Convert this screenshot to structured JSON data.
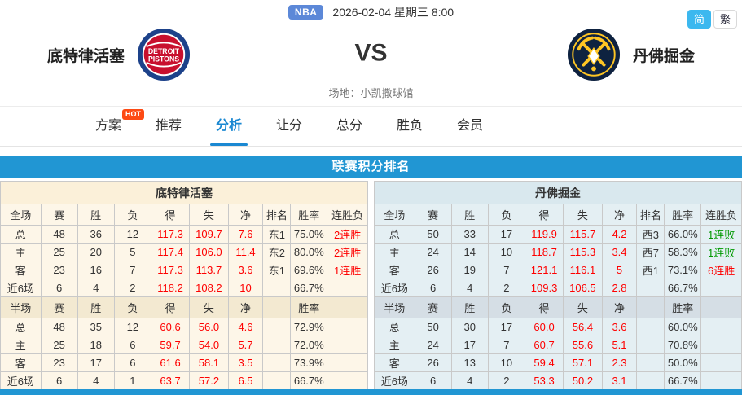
{
  "topbar": {
    "league_badge": "NBA",
    "datetime": "2026-02-04 星期三 8:00",
    "lang_simplified": "简",
    "lang_traditional": "繁"
  },
  "match": {
    "home_name": "底特律活塞",
    "away_name": "丹佛掘金",
    "vs": "VS",
    "venue": "场地：小凯撒球馆",
    "home_logo_line1": "DETROIT",
    "home_logo_line2": "PISTONS"
  },
  "nav": {
    "tabs": [
      {
        "label": "方案",
        "badge": "HOT"
      },
      {
        "label": "推荐"
      },
      {
        "label": "分析",
        "active": true
      },
      {
        "label": "让分"
      },
      {
        "label": "总分"
      },
      {
        "label": "胜负"
      },
      {
        "label": "会员"
      }
    ]
  },
  "section": {
    "title": "联赛积分排名"
  },
  "colors": {
    "accent_blue": "#2196d3",
    "active_tab": "#1a88d2",
    "nba_badge": "#5c88d8",
    "lang_active": "#3cb8ef",
    "hot_badge": "#fd4a14",
    "positive_red": "#fe0000",
    "negative_green": "#009900",
    "home_bg": "#fdf6e8",
    "home_header_bg": "#fbf0d9",
    "home_subheader_bg": "#f3e9d1",
    "away_bg": "#e4eff3",
    "away_header_bg": "#d9e8ee",
    "away_subheader_bg": "#d5dee5",
    "pistons_blue": "#1d428a",
    "pistons_red": "#c8102e",
    "nuggets_navy": "#0e2240",
    "nuggets_gold": "#fec524"
  },
  "tables": {
    "home": {
      "team": "底特律活塞",
      "full_header": [
        "全场",
        "赛",
        "胜",
        "负",
        "得",
        "失",
        "净",
        "排名",
        "胜率",
        "连胜负"
      ],
      "full_rows": [
        [
          "总",
          "48",
          "36",
          "12",
          "117.3",
          "109.7",
          "7.6",
          "东1",
          "75.0%",
          "2连胜"
        ],
        [
          "主",
          "25",
          "20",
          "5",
          "117.4",
          "106.0",
          "11.4",
          "东2",
          "80.0%",
          "2连胜"
        ],
        [
          "客",
          "23",
          "16",
          "7",
          "117.3",
          "113.7",
          "3.6",
          "东1",
          "69.6%",
          "1连胜"
        ],
        [
          "近6场",
          "6",
          "4",
          "2",
          "118.2",
          "108.2",
          "10",
          "",
          "66.7%",
          ""
        ]
      ],
      "half_header": [
        "半场",
        "赛",
        "胜",
        "负",
        "得",
        "失",
        "净",
        "",
        "胜率",
        ""
      ],
      "half_rows": [
        [
          "总",
          "48",
          "35",
          "12",
          "60.6",
          "56.0",
          "4.6",
          "",
          "72.9%",
          ""
        ],
        [
          "主",
          "25",
          "18",
          "6",
          "59.7",
          "54.0",
          "5.7",
          "",
          "72.0%",
          ""
        ],
        [
          "客",
          "23",
          "17",
          "6",
          "61.6",
          "58.1",
          "3.5",
          "",
          "73.9%",
          ""
        ],
        [
          "近6场",
          "6",
          "4",
          "1",
          "63.7",
          "57.2",
          "6.5",
          "",
          "66.7%",
          ""
        ]
      ]
    },
    "away": {
      "team": "丹佛掘金",
      "full_header": [
        "全场",
        "赛",
        "胜",
        "负",
        "得",
        "失",
        "净",
        "排名",
        "胜率",
        "连胜负"
      ],
      "full_rows": [
        [
          "总",
          "50",
          "33",
          "17",
          "119.9",
          "115.7",
          "4.2",
          "西3",
          "66.0%",
          "1连败"
        ],
        [
          "主",
          "24",
          "14",
          "10",
          "118.7",
          "115.3",
          "3.4",
          "西7",
          "58.3%",
          "1连败"
        ],
        [
          "客",
          "26",
          "19",
          "7",
          "121.1",
          "116.1",
          "5",
          "西1",
          "73.1%",
          "6连胜"
        ],
        [
          "近6场",
          "6",
          "4",
          "2",
          "109.3",
          "106.5",
          "2.8",
          "",
          "66.7%",
          ""
        ]
      ],
      "half_header": [
        "半场",
        "赛",
        "胜",
        "负",
        "得",
        "失",
        "净",
        "",
        "胜率",
        ""
      ],
      "half_rows": [
        [
          "总",
          "50",
          "30",
          "17",
          "60.0",
          "56.4",
          "3.6",
          "",
          "60.0%",
          ""
        ],
        [
          "主",
          "24",
          "17",
          "7",
          "60.7",
          "55.6",
          "5.1",
          "",
          "70.8%",
          ""
        ],
        [
          "客",
          "26",
          "13",
          "10",
          "59.4",
          "57.1",
          "2.3",
          "",
          "50.0%",
          ""
        ],
        [
          "近6场",
          "6",
          "4",
          "2",
          "53.3",
          "50.2",
          "3.1",
          "",
          "66.7%",
          ""
        ]
      ]
    }
  }
}
